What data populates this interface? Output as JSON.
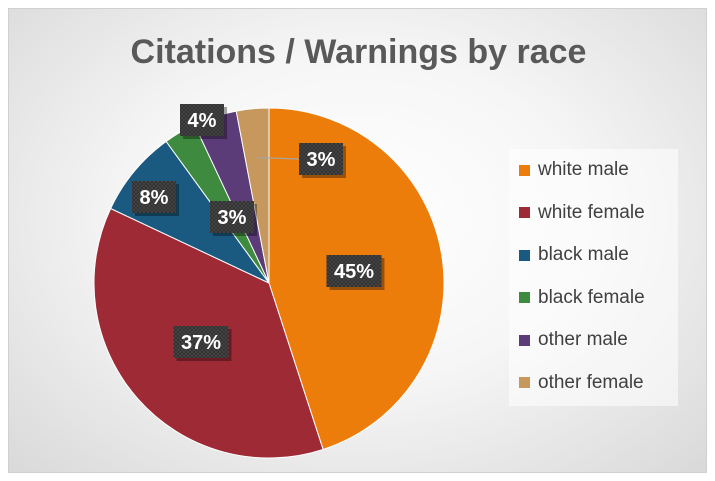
{
  "chart_data": {
    "type": "pie",
    "title": "Citations / Warnings by race",
    "start_angle_deg": 0,
    "direction": "clockwise",
    "legend_position": "right",
    "slices": [
      {
        "label": "white male",
        "value": 45,
        "data_label": "45%",
        "color": "#ed7d0b"
      },
      {
        "label": "white female",
        "value": 37,
        "data_label": "37%",
        "color": "#9e2a36"
      },
      {
        "label": "black male",
        "value": 8,
        "data_label": "8%",
        "color": "#1b5a80"
      },
      {
        "label": "black female",
        "value": 3,
        "data_label": "3%",
        "color": "#3e8a3e"
      },
      {
        "label": "other male",
        "value": 4,
        "data_label": "4%",
        "color": "#5b3b78"
      },
      {
        "label": "other female",
        "value": 3,
        "data_label": "3%",
        "color": "#c6985e"
      }
    ]
  }
}
